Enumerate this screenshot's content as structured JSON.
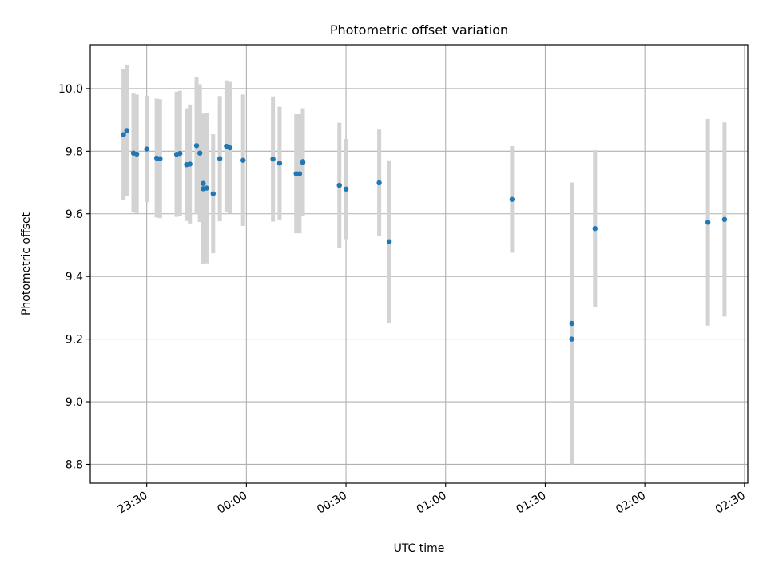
{
  "chart_data": {
    "type": "scatter",
    "title": "Photometric offset variation",
    "xlabel": "UTC time",
    "ylabel": "Photometric offset",
    "grid": true,
    "xlim": [
      "23:13",
      "02:31"
    ],
    "ylim": [
      8.74,
      10.14
    ],
    "x_ticks": [
      "23:30",
      "00:00",
      "00:30",
      "01:00",
      "01:30",
      "02:00",
      "02:30"
    ],
    "y_ticks": [
      "8.8",
      "9.0",
      "9.2",
      "9.4",
      "9.6",
      "9.8",
      "10.0"
    ],
    "marker_color": "#1f77b4",
    "errorbar_color": "#d3d3d3",
    "points": [
      {
        "x": "23:23",
        "y": 9.853,
        "yerr": 0.21
      },
      {
        "x": "23:24",
        "y": 9.866,
        "yerr": 0.21
      },
      {
        "x": "23:26",
        "y": 9.794,
        "yerr": 0.19
      },
      {
        "x": "23:27",
        "y": 9.791,
        "yerr": 0.19
      },
      {
        "x": "23:30",
        "y": 9.807,
        "yerr": 0.17
      },
      {
        "x": "23:33",
        "y": 9.778,
        "yerr": 0.19
      },
      {
        "x": "23:34",
        "y": 9.776,
        "yerr": 0.19
      },
      {
        "x": "23:39",
        "y": 9.79,
        "yerr": 0.2
      },
      {
        "x": "23:40",
        "y": 9.793,
        "yerr": 0.2
      },
      {
        "x": "23:42",
        "y": 9.757,
        "yerr": 0.18
      },
      {
        "x": "23:43",
        "y": 9.759,
        "yerr": 0.19
      },
      {
        "x": "23:45",
        "y": 9.818,
        "yerr": 0.22
      },
      {
        "x": "23:46",
        "y": 9.794,
        "yerr": 0.22
      },
      {
        "x": "23:47",
        "y": 9.697,
        "yerr": 0.22
      },
      {
        "x": "23:47",
        "y": 9.68,
        "yerr": 0.24
      },
      {
        "x": "23:48",
        "y": 9.682,
        "yerr": 0.24
      },
      {
        "x": "23:50",
        "y": 9.664,
        "yerr": 0.19
      },
      {
        "x": "23:52",
        "y": 9.776,
        "yerr": 0.2
      },
      {
        "x": "23:54",
        "y": 9.816,
        "yerr": 0.21
      },
      {
        "x": "23:55",
        "y": 9.811,
        "yerr": 0.21
      },
      {
        "x": "23:59",
        "y": 9.771,
        "yerr": 0.21
      },
      {
        "x": "00:08",
        "y": 9.775,
        "yerr": 0.2
      },
      {
        "x": "00:10",
        "y": 9.762,
        "yerr": 0.18
      },
      {
        "x": "00:15",
        "y": 9.728,
        "yerr": 0.19
      },
      {
        "x": "00:16",
        "y": 9.728,
        "yerr": 0.19
      },
      {
        "x": "00:17",
        "y": 9.764,
        "yerr": 0.17
      },
      {
        "x": "00:17",
        "y": 9.767,
        "yerr": 0.17
      },
      {
        "x": "00:28",
        "y": 9.691,
        "yerr": 0.2
      },
      {
        "x": "00:30",
        "y": 9.679,
        "yerr": 0.16
      },
      {
        "x": "00:40",
        "y": 9.699,
        "yerr": 0.17
      },
      {
        "x": "00:43",
        "y": 9.511,
        "yerr": 0.26
      },
      {
        "x": "01:20",
        "y": 9.646,
        "yerr": 0.17
      },
      {
        "x": "01:38",
        "y": 9.25,
        "yerr": 0.45
      },
      {
        "x": "01:38",
        "y": 9.2,
        "yerr": 0.4
      },
      {
        "x": "01:45",
        "y": 9.553,
        "yerr": 0.25
      },
      {
        "x": "02:19",
        "y": 9.573,
        "yerr": 0.33
      },
      {
        "x": "02:24",
        "y": 9.582,
        "yerr": 0.31
      }
    ]
  }
}
